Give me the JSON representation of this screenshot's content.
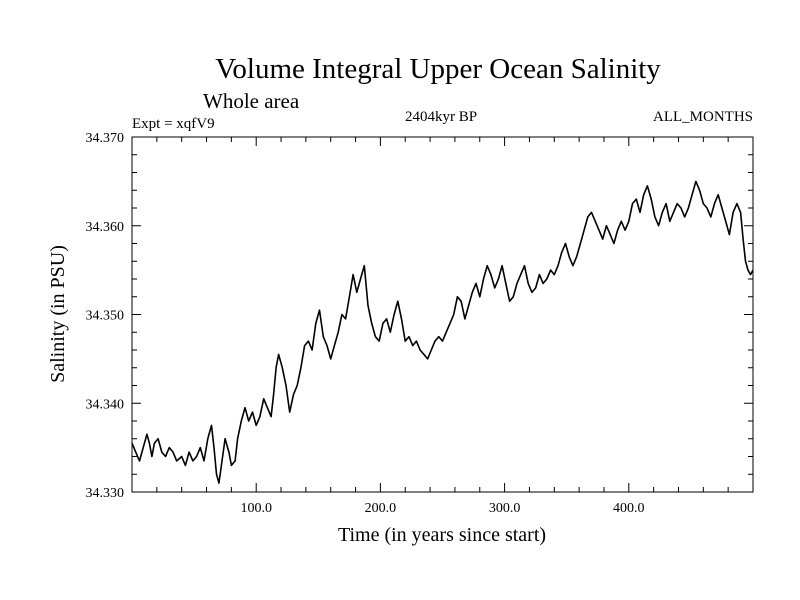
{
  "chart_data": {
    "type": "line",
    "title": "Volume Integral Upper Ocean Salinity",
    "subtitle": "Whole area",
    "experiment_label": "Expt = xqfV9",
    "period_label": "2404kyr BP",
    "months_label": "ALL_MONTHS",
    "xlabel": "Time (in years since start)",
    "ylabel": "Salinity (in PSU)",
    "xlim": [
      0,
      500
    ],
    "ylim": [
      34.33,
      34.37
    ],
    "x_ticks": [
      100,
      200,
      300,
      400
    ],
    "x_tick_labels": [
      "100.0",
      "200.0",
      "300.0",
      "400.0"
    ],
    "y_ticks": [
      34.33,
      34.34,
      34.35,
      34.36,
      34.37
    ],
    "y_tick_labels": [
      "34.330",
      "34.340",
      "34.350",
      "34.360",
      "34.370"
    ],
    "grid": false,
    "series": [
      {
        "name": "Salinity",
        "color": "#000000",
        "points": [
          [
            0,
            34.3355
          ],
          [
            3,
            34.3345
          ],
          [
            6,
            34.3335
          ],
          [
            9,
            34.335
          ],
          [
            12,
            34.3365
          ],
          [
            14,
            34.3355
          ],
          [
            16,
            34.334
          ],
          [
            18,
            34.3355
          ],
          [
            21,
            34.336
          ],
          [
            24,
            34.3345
          ],
          [
            27,
            34.334
          ],
          [
            30,
            34.335
          ],
          [
            33,
            34.3345
          ],
          [
            36,
            34.3335
          ],
          [
            40,
            34.334
          ],
          [
            43,
            34.333
          ],
          [
            46,
            34.3345
          ],
          [
            49,
            34.3335
          ],
          [
            52,
            34.334
          ],
          [
            55,
            34.335
          ],
          [
            58,
            34.3335
          ],
          [
            61,
            34.336
          ],
          [
            64,
            34.3375
          ],
          [
            66,
            34.335
          ],
          [
            68,
            34.332
          ],
          [
            70,
            34.331
          ],
          [
            72,
            34.333
          ],
          [
            75,
            34.336
          ],
          [
            78,
            34.3345
          ],
          [
            80,
            34.333
          ],
          [
            83,
            34.3335
          ],
          [
            85,
            34.336
          ],
          [
            88,
            34.338
          ],
          [
            91,
            34.3395
          ],
          [
            94,
            34.338
          ],
          [
            97,
            34.339
          ],
          [
            100,
            34.3375
          ],
          [
            103,
            34.3385
          ],
          [
            106,
            34.3405
          ],
          [
            109,
            34.3395
          ],
          [
            112,
            34.3385
          ],
          [
            114,
            34.341
          ],
          [
            116,
            34.344
          ],
          [
            118,
            34.3455
          ],
          [
            121,
            34.344
          ],
          [
            124,
            34.342
          ],
          [
            127,
            34.339
          ],
          [
            130,
            34.341
          ],
          [
            133,
            34.342
          ],
          [
            136,
            34.344
          ],
          [
            139,
            34.3465
          ],
          [
            142,
            34.347
          ],
          [
            145,
            34.346
          ],
          [
            148,
            34.349
          ],
          [
            151,
            34.3505
          ],
          [
            154,
            34.3475
          ],
          [
            157,
            34.3465
          ],
          [
            160,
            34.345
          ],
          [
            163,
            34.3465
          ],
          [
            166,
            34.348
          ],
          [
            169,
            34.35
          ],
          [
            172,
            34.3495
          ],
          [
            175,
            34.352
          ],
          [
            178,
            34.3545
          ],
          [
            181,
            34.3525
          ],
          [
            184,
            34.354
          ],
          [
            187,
            34.3555
          ],
          [
            190,
            34.351
          ],
          [
            193,
            34.349
          ],
          [
            196,
            34.3475
          ],
          [
            199,
            34.347
          ],
          [
            202,
            34.349
          ],
          [
            205,
            34.3495
          ],
          [
            208,
            34.348
          ],
          [
            211,
            34.35
          ],
          [
            214,
            34.3515
          ],
          [
            217,
            34.3495
          ],
          [
            220,
            34.347
          ],
          [
            223,
            34.3475
          ],
          [
            226,
            34.3465
          ],
          [
            229,
            34.347
          ],
          [
            232,
            34.346
          ],
          [
            235,
            34.3455
          ],
          [
            238,
            34.345
          ],
          [
            241,
            34.346
          ],
          [
            244,
            34.347
          ],
          [
            247,
            34.3475
          ],
          [
            250,
            34.347
          ],
          [
            253,
            34.348
          ],
          [
            256,
            34.349
          ],
          [
            259,
            34.35
          ],
          [
            262,
            34.352
          ],
          [
            265,
            34.3515
          ],
          [
            268,
            34.3495
          ],
          [
            271,
            34.351
          ],
          [
            274,
            34.3525
          ],
          [
            277,
            34.3535
          ],
          [
            280,
            34.352
          ],
          [
            283,
            34.354
          ],
          [
            286,
            34.3555
          ],
          [
            289,
            34.3545
          ],
          [
            292,
            34.353
          ],
          [
            295,
            34.354
          ],
          [
            298,
            34.3555
          ],
          [
            301,
            34.3535
          ],
          [
            304,
            34.3515
          ],
          [
            307,
            34.352
          ],
          [
            310,
            34.3535
          ],
          [
            313,
            34.3545
          ],
          [
            316,
            34.3555
          ],
          [
            319,
            34.3535
          ],
          [
            322,
            34.3525
          ],
          [
            325,
            34.353
          ],
          [
            328,
            34.3545
          ],
          [
            331,
            34.3535
          ],
          [
            334,
            34.354
          ],
          [
            337,
            34.355
          ],
          [
            340,
            34.3545
          ],
          [
            343,
            34.3555
          ],
          [
            346,
            34.357
          ],
          [
            349,
            34.358
          ],
          [
            352,
            34.3565
          ],
          [
            355,
            34.3555
          ],
          [
            358,
            34.3565
          ],
          [
            361,
            34.358
          ],
          [
            364,
            34.3595
          ],
          [
            367,
            34.361
          ],
          [
            370,
            34.3615
          ],
          [
            373,
            34.3605
          ],
          [
            376,
            34.3595
          ],
          [
            379,
            34.3585
          ],
          [
            382,
            34.36
          ],
          [
            385,
            34.359
          ],
          [
            388,
            34.358
          ],
          [
            391,
            34.3595
          ],
          [
            394,
            34.3605
          ],
          [
            397,
            34.3595
          ],
          [
            400,
            34.3605
          ],
          [
            403,
            34.3625
          ],
          [
            406,
            34.363
          ],
          [
            409,
            34.3615
          ],
          [
            412,
            34.3635
          ],
          [
            415,
            34.3645
          ],
          [
            418,
            34.363
          ],
          [
            421,
            34.361
          ],
          [
            424,
            34.36
          ],
          [
            427,
            34.3615
          ],
          [
            430,
            34.3625
          ],
          [
            433,
            34.3605
          ],
          [
            436,
            34.3615
          ],
          [
            439,
            34.3625
          ],
          [
            442,
            34.362
          ],
          [
            445,
            34.361
          ],
          [
            448,
            34.362
          ],
          [
            451,
            34.3635
          ],
          [
            454,
            34.365
          ],
          [
            457,
            34.364
          ],
          [
            460,
            34.3625
          ],
          [
            463,
            34.362
          ],
          [
            466,
            34.361
          ],
          [
            469,
            34.3625
          ],
          [
            472,
            34.3635
          ],
          [
            475,
            34.362
          ],
          [
            478,
            34.3605
          ],
          [
            481,
            34.359
          ],
          [
            484,
            34.3615
          ],
          [
            487,
            34.3625
          ],
          [
            490,
            34.3615
          ],
          [
            492,
            34.3585
          ],
          [
            494,
            34.356
          ],
          [
            496,
            34.355
          ],
          [
            498,
            34.3545
          ],
          [
            500,
            34.355
          ]
        ]
      }
    ]
  }
}
